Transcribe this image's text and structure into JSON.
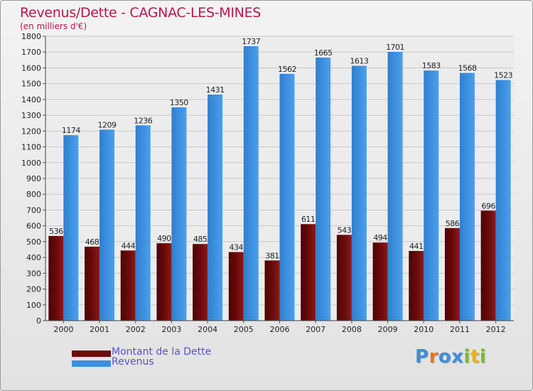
{
  "chart_data": {
    "type": "bar",
    "title": "Revenus/Dette - CAGNAC-LES-MINES",
    "subtitle": "(en milliers d'€)",
    "categories": [
      "2000",
      "2001",
      "2002",
      "2003",
      "2004",
      "2005",
      "2006",
      "2007",
      "2008",
      "2009",
      "2010",
      "2011",
      "2012"
    ],
    "series": [
      {
        "name": "Montant de la Dette",
        "color": "#6e0a0a",
        "values": [
          536,
          468,
          444,
          490,
          485,
          434,
          381,
          611,
          543,
          494,
          441,
          586,
          696
        ]
      },
      {
        "name": "Revenus",
        "color": "#3d8fe0",
        "values": [
          1174,
          1209,
          1236,
          1350,
          1431,
          1737,
          1562,
          1665,
          1613,
          1701,
          1583,
          1568,
          1523
        ]
      }
    ],
    "ylim": [
      0,
      1800
    ],
    "yticks": [
      0,
      100,
      200,
      300,
      400,
      500,
      600,
      700,
      800,
      900,
      1000,
      1100,
      1200,
      1300,
      1400,
      1500,
      1600,
      1700,
      1800
    ],
    "grid": true,
    "legend": "bottom-left"
  },
  "brand": {
    "letters": [
      "P",
      "r",
      "o",
      "x",
      "i",
      "t",
      "i"
    ],
    "colors": [
      "#3b8fd9",
      "#e8731c",
      "#3b8fd9",
      "#3b8fd9",
      "#7bbb2a",
      "#e8b21c",
      "#7bbb2a"
    ]
  }
}
